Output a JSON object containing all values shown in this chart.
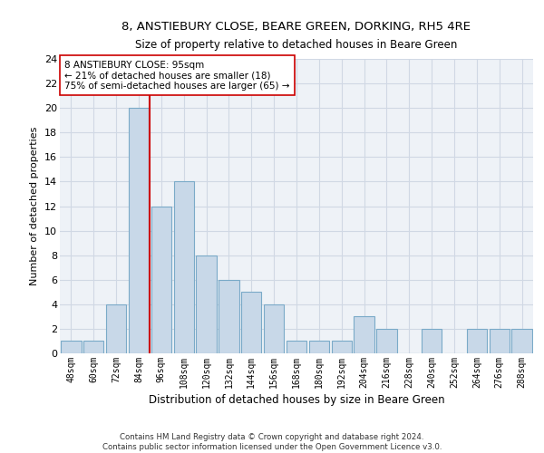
{
  "title_line1": "8, ANSTIEBURY CLOSE, BEARE GREEN, DORKING, RH5 4RE",
  "title_line2": "Size of property relative to detached houses in Beare Green",
  "xlabel": "Distribution of detached houses by size in Beare Green",
  "ylabel": "Number of detached properties",
  "categories": [
    "48sqm",
    "60sqm",
    "72sqm",
    "84sqm",
    "96sqm",
    "108sqm",
    "120sqm",
    "132sqm",
    "144sqm",
    "156sqm",
    "168sqm",
    "180sqm",
    "192sqm",
    "204sqm",
    "216sqm",
    "228sqm",
    "240sqm",
    "252sqm",
    "264sqm",
    "276sqm",
    "288sqm"
  ],
  "values": [
    1,
    1,
    4,
    20,
    12,
    14,
    8,
    6,
    5,
    4,
    1,
    1,
    1,
    3,
    2,
    0,
    2,
    0,
    2,
    2,
    2
  ],
  "bar_color": "#c8d8e8",
  "bar_edgecolor": "#7aaac8",
  "subject_line_color": "#cc0000",
  "annotation_text": "8 ANSTIEBURY CLOSE: 95sqm\n← 21% of detached houses are smaller (18)\n75% of semi-detached houses are larger (65) →",
  "annotation_box_edgecolor": "#cc0000",
  "ylim": [
    0,
    24
  ],
  "yticks": [
    0,
    2,
    4,
    6,
    8,
    10,
    12,
    14,
    16,
    18,
    20,
    22,
    24
  ],
  "footer_line1": "Contains HM Land Registry data © Crown copyright and database right 2024.",
  "footer_line2": "Contains public sector information licensed under the Open Government Licence v3.0.",
  "bg_color": "#eef2f7",
  "grid_color": "#d0d8e4"
}
